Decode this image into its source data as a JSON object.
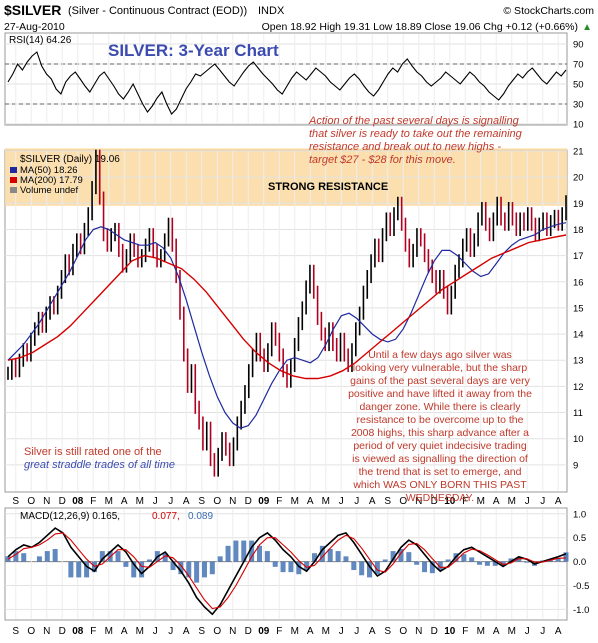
{
  "header": {
    "symbol": "$SILVER",
    "description": "(Silver - Continuous Contract (EOD))",
    "exchange": "INDX",
    "date": "27-Aug-2010",
    "source": "© StockCharts.com",
    "quote": "Open 18.92  High 19.31  Low 18.89  Close 19.06  Chg +0.12 (+0.66%)",
    "quote_arrow": "▲"
  },
  "colors": {
    "price": "#000000",
    "up_bar": "#000000",
    "down_bar": "#b00020",
    "ma50": "#1f2a9e",
    "ma200": "#d40000",
    "resistance_band": "#fbd9a0",
    "annotation_red": "#c0392b",
    "annotation_blue": "#3b4bb0",
    "title_blue": "#3b4bb0",
    "macd_histogram": "#3a6bb0",
    "macd_signal": "#d40000"
  },
  "annotations": {
    "chart_title": "SILVER: 3-Year Chart",
    "resistance_label": "STRONG RESISTANCE",
    "note_top": [
      "Action of the past several days is signalling",
      "that silver is ready to take out the remaining",
      "resistance and break out to new highs -",
      "target $27 - $28 for this move."
    ],
    "note_mid": [
      "Until a few days ago silver was",
      "looking very vulnerable, but the sharp",
      "gains of the past several days are very",
      "positive and have lifted it away from the",
      "danger zone. While there is clearly",
      "resistance to be overcome up to the",
      "2008 highs, this sharp advance after a",
      "period of very quiet indecisive trading",
      "is viewed as signalling the direction of",
      "the trend that is set to emerge, and",
      "which WAS ONLY BORN THIS PAST",
      "WEDNESDAY."
    ],
    "note_left_1": "Silver is still rated one of the",
    "note_left_2": "great straddle trades of all time"
  },
  "chart_data": [
    {
      "type": "line",
      "panel": "rsi",
      "legend": [
        "RSI(14) 64.26"
      ],
      "ylim": [
        10,
        100
      ],
      "ticks": [
        "90",
        "70",
        "50",
        "30",
        "10"
      ],
      "tick_values": [
        90,
        70,
        50,
        30,
        10
      ],
      "overbought": 70,
      "oversold": 30,
      "series": [
        {
          "name": "RSI(14)",
          "values": [
            52,
            60,
            70,
            64,
            72,
            78,
            82,
            68,
            60,
            55,
            45,
            40,
            52,
            58,
            62,
            55,
            48,
            42,
            50,
            58,
            62,
            55,
            48,
            40,
            35,
            42,
            50,
            40,
            30,
            22,
            28,
            36,
            42,
            30,
            20,
            25,
            35,
            45,
            52,
            60,
            58,
            62,
            66,
            70,
            64,
            58,
            52,
            48,
            55,
            62,
            68,
            72,
            66,
            60,
            55,
            50,
            44,
            40,
            48,
            56,
            62,
            58,
            54,
            60,
            66,
            62,
            58,
            52,
            48,
            44,
            50,
            56,
            60,
            55,
            48,
            42,
            38,
            44,
            52,
            60,
            66,
            62,
            70,
            75,
            68,
            62,
            58,
            52,
            48,
            52,
            56,
            62,
            58,
            54,
            50,
            56,
            62,
            58,
            52,
            48,
            42,
            38,
            34,
            40,
            48,
            54,
            60,
            56,
            62,
            66,
            60,
            54,
            50,
            56,
            62,
            58,
            64
          ]
        }
      ]
    },
    {
      "type": "candlestick",
      "panel": "price",
      "legend": [
        "$SILVER (Daily) 19.06",
        "MA(50) 18.26",
        "MA(200) 17.79",
        "Volume undef"
      ],
      "ylim": [
        8,
        21
      ],
      "ticks": [
        "21",
        "20",
        "19",
        "18",
        "17",
        "16",
        "15",
        "14",
        "13",
        "12",
        "11",
        "10",
        "9"
      ],
      "tick_values": [
        21,
        20,
        19,
        18,
        17,
        16,
        15,
        14,
        13,
        12,
        11,
        10,
        9
      ],
      "resistance_band": [
        18.9,
        21.1
      ],
      "x_labels": [
        "S",
        "O",
        "N",
        "D",
        "08",
        "F",
        "M",
        "A",
        "M",
        "J",
        "J",
        "A",
        "S",
        "O",
        "N",
        "D",
        "09",
        "F",
        "M",
        "A",
        "M",
        "J",
        "J",
        "A",
        "S",
        "O",
        "N",
        "D",
        "10",
        "F",
        "M",
        "A",
        "M",
        "J",
        "J",
        "A"
      ],
      "series": [
        {
          "name": "$SILVER",
          "values": [
            12.5,
            12.8,
            12.6,
            13.0,
            13.4,
            13.2,
            13.8,
            14.2,
            14.6,
            14.3,
            14.8,
            15.2,
            15.0,
            15.6,
            16.2,
            16.8,
            16.5,
            17.2,
            17.6,
            17.3,
            18.0,
            18.6,
            19.6,
            20.8,
            19.2,
            17.8,
            17.4,
            17.8,
            18.0,
            17.2,
            16.6,
            17.0,
            17.6,
            17.2,
            16.8,
            17.0,
            17.4,
            17.8,
            17.2,
            16.8,
            17.0,
            17.6,
            18.2,
            17.4,
            16.2,
            14.8,
            13.2,
            12.0,
            12.6,
            11.2,
            10.6,
            9.8,
            10.4,
            9.2,
            8.8,
            9.4,
            10.0,
            9.6,
            9.2,
            9.8,
            10.6,
            11.2,
            11.8,
            12.6,
            13.2,
            13.8,
            13.2,
            12.8,
            13.4,
            14.2,
            13.8,
            13.2,
            12.6,
            12.2,
            12.8,
            13.6,
            14.4,
            15.0,
            15.8,
            16.4,
            15.6,
            14.6,
            14.0,
            13.6,
            14.2,
            13.6,
            13.2,
            13.8,
            13.2,
            12.8,
            13.4,
            14.2,
            14.8,
            15.6,
            16.2,
            16.8,
            17.4,
            17.0,
            17.8,
            18.4,
            18.0,
            18.6,
            19.0,
            18.2,
            17.4,
            16.8,
            17.2,
            17.8,
            17.6,
            17.0,
            16.6,
            16.2,
            15.8,
            16.2,
            15.6,
            15.0,
            15.6,
            16.4,
            16.8,
            17.4,
            17.8,
            17.2,
            17.6,
            18.4,
            18.8,
            18.2,
            17.8,
            18.4,
            19.0,
            18.4,
            18.2,
            18.8,
            18.4,
            18.0,
            18.4,
            18.2,
            18.6,
            18.2,
            17.8,
            18.2,
            18.4,
            18.0,
            18.3,
            18.5,
            18.2,
            18.6,
            19.06
          ]
        },
        {
          "name": "MA(50)",
          "values": [
            13.0,
            13.3,
            13.6,
            14.0,
            14.4,
            14.9,
            15.4,
            15.9,
            16.4,
            17.0,
            17.6,
            18.0,
            18.1,
            18.0,
            17.8,
            17.6,
            17.5,
            17.4,
            17.4,
            17.5,
            17.3,
            16.9,
            16.2,
            15.3,
            14.3,
            13.3,
            12.4,
            11.6,
            11.0,
            10.6,
            10.4,
            10.5,
            10.9,
            11.5,
            12.1,
            12.6,
            13.0,
            13.1,
            13.0,
            12.9,
            13.1,
            13.6,
            14.2,
            14.7,
            14.8,
            14.6,
            14.3,
            14.0,
            13.8,
            13.7,
            13.8,
            14.2,
            14.8,
            15.5,
            16.2,
            16.8,
            17.2,
            17.2,
            17.0,
            16.7,
            16.4,
            16.2,
            16.3,
            16.7,
            17.1,
            17.4,
            17.6,
            17.7,
            17.8,
            18.0,
            18.1,
            18.2,
            18.26
          ]
        },
        {
          "name": "MA(200)",
          "values": [
            13.0,
            13.1,
            13.3,
            13.6,
            13.9,
            14.3,
            14.8,
            15.3,
            15.8,
            16.3,
            16.8,
            17.0,
            16.9,
            16.7,
            16.5,
            16.1,
            15.6,
            15.0,
            14.4,
            13.8,
            13.3,
            12.9,
            12.6,
            12.4,
            12.3,
            12.3,
            12.4,
            12.6,
            12.9,
            13.3,
            13.7,
            14.1,
            14.5,
            14.9,
            15.3,
            15.7,
            16.0,
            16.3,
            16.6,
            16.9,
            17.1,
            17.3,
            17.5,
            17.6,
            17.7,
            17.79
          ]
        }
      ]
    },
    {
      "type": "line",
      "panel": "macd",
      "legend": [
        "MACD(12,26,9) 0.165,",
        "0.077,",
        "0.089"
      ],
      "ylim": [
        -1.2,
        1.1
      ],
      "ticks": [
        "1.0",
        "0.5",
        "0.0",
        "-0.5",
        "-1.0"
      ],
      "tick_values": [
        1.0,
        0.5,
        0.0,
        -0.5,
        -1.0
      ],
      "x_labels": [
        "S",
        "O",
        "N",
        "D",
        "08",
        "F",
        "M",
        "A",
        "M",
        "J",
        "J",
        "A",
        "S",
        "O",
        "N",
        "D",
        "09",
        "F",
        "M",
        "A",
        "M",
        "J",
        "J",
        "A",
        "S",
        "O",
        "N",
        "D",
        "10",
        "F",
        "M",
        "A",
        "M",
        "J",
        "J",
        "A"
      ],
      "series": [
        {
          "name": "MACD",
          "values": [
            0.1,
            0.25,
            0.35,
            0.3,
            0.4,
            0.55,
            0.7,
            0.6,
            0.3,
            0.1,
            -0.1,
            -0.2,
            0.05,
            0.2,
            0.35,
            0.2,
            -0.05,
            -0.25,
            -0.1,
            0.1,
            0.2,
            0.0,
            -0.2,
            -0.45,
            -0.75,
            -0.95,
            -1.1,
            -0.9,
            -0.6,
            -0.3,
            0.0,
            0.3,
            0.5,
            0.6,
            0.45,
            0.25,
            0.1,
            -0.1,
            -0.2,
            0.0,
            0.25,
            0.4,
            0.55,
            0.6,
            0.4,
            0.15,
            -0.1,
            -0.3,
            -0.2,
            0.05,
            0.3,
            0.45,
            0.35,
            0.15,
            -0.05,
            -0.2,
            -0.1,
            0.1,
            0.25,
            0.3,
            0.2,
            0.1,
            0.0,
            -0.1,
            0.0,
            0.1,
            0.05,
            -0.05,
            0.0,
            0.05,
            0.1,
            0.165
          ]
        },
        {
          "name": "Signal",
          "values": [
            0.05,
            0.15,
            0.27,
            0.3,
            0.35,
            0.45,
            0.58,
            0.6,
            0.45,
            0.25,
            0.05,
            -0.1,
            -0.05,
            0.1,
            0.25,
            0.25,
            0.1,
            -0.1,
            -0.12,
            0.0,
            0.12,
            0.08,
            -0.08,
            -0.3,
            -0.55,
            -0.8,
            -0.98,
            -0.95,
            -0.75,
            -0.5,
            -0.2,
            0.1,
            0.35,
            0.5,
            0.5,
            0.35,
            0.2,
            0.02,
            -0.12,
            -0.08,
            0.1,
            0.28,
            0.45,
            0.55,
            0.48,
            0.28,
            0.05,
            -0.18,
            -0.22,
            -0.05,
            0.18,
            0.36,
            0.38,
            0.25,
            0.06,
            -0.12,
            -0.12,
            0.02,
            0.18,
            0.26,
            0.23,
            0.14,
            0.04,
            -0.06,
            -0.03,
            0.06,
            0.06,
            -0.01,
            -0.01,
            0.03,
            0.07,
            0.077
          ]
        }
      ]
    }
  ]
}
